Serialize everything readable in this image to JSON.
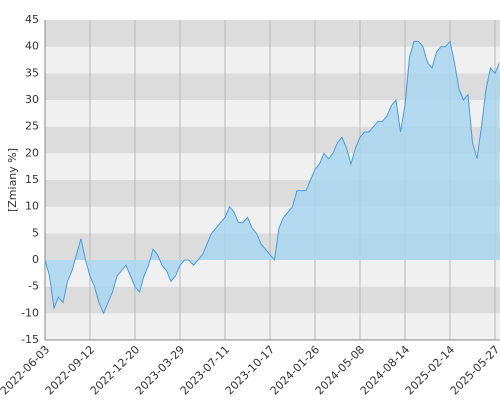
{
  "chart_data": {
    "type": "area",
    "ylabel": "[Zmiany %]",
    "categories": [
      "2022-06-03",
      null,
      null,
      null,
      null,
      null,
      null,
      null,
      null,
      null,
      "2022-09-12",
      null,
      null,
      null,
      null,
      null,
      null,
      null,
      null,
      null,
      "2022-12-20",
      null,
      null,
      null,
      null,
      null,
      null,
      null,
      null,
      null,
      "2023-03-29",
      null,
      null,
      null,
      null,
      null,
      null,
      null,
      null,
      null,
      "2023-07-11",
      null,
      null,
      null,
      null,
      null,
      null,
      null,
      null,
      null,
      "2023-10-17",
      null,
      null,
      null,
      null,
      null,
      null,
      null,
      null,
      null,
      "2024-01-26",
      null,
      null,
      null,
      null,
      null,
      null,
      null,
      null,
      null,
      "2024-05-08",
      null,
      null,
      null,
      null,
      null,
      null,
      null,
      null,
      null,
      "2024-08-14",
      null,
      null,
      null,
      null,
      null,
      null,
      null,
      null,
      null,
      "2025-02-14",
      null,
      null,
      null,
      null,
      null,
      null,
      null,
      null,
      null,
      "2025-05-27",
      null
    ],
    "values": [
      0,
      -3,
      -9,
      -7,
      -8,
      -4,
      -2,
      1,
      4,
      0,
      -3,
      -5,
      -8,
      -10,
      -8,
      -6,
      -3,
      -2,
      -1,
      -3,
      -5,
      -6,
      -3,
      -1,
      2,
      1,
      -1,
      -2,
      -4,
      -3,
      -1,
      0,
      0,
      -1,
      0,
      1,
      3,
      5,
      6,
      7,
      8,
      10,
      9,
      7,
      7,
      8,
      6,
      5,
      3,
      2,
      1,
      0,
      6,
      8,
      9,
      10,
      13,
      13,
      13,
      15,
      17,
      18,
      20,
      19,
      20,
      22,
      23,
      21,
      18,
      21,
      23,
      24,
      24,
      25,
      26,
      26,
      27,
      29,
      30,
      24,
      29,
      38,
      41,
      41,
      40,
      37,
      36,
      39,
      40,
      40,
      41,
      37,
      32,
      30,
      31,
      22,
      19,
      25,
      32,
      36,
      35,
      37
    ],
    "color": "#4a9be0",
    "fill": "#a9d6ee",
    "ylim": [
      -15,
      45
    ],
    "yticks": [
      -15,
      -10,
      -5,
      0,
      5,
      10,
      15,
      20,
      25,
      30,
      35,
      40,
      45
    ],
    "grid": true
  }
}
